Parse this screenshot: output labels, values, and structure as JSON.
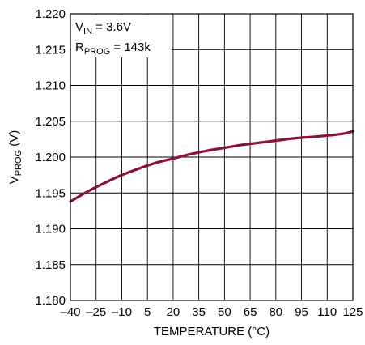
{
  "chart_data": {
    "type": "line",
    "title": "",
    "xlabel": "TEMPERATURE (°C)",
    "ylabel": {
      "main": "V",
      "sub": "PROG",
      "unit": " (V)"
    },
    "xlim": [
      -40,
      125
    ],
    "ylim": [
      1.18,
      1.22
    ],
    "x_ticks": [
      -40,
      -25,
      -10,
      5,
      20,
      35,
      50,
      65,
      80,
      95,
      110,
      125
    ],
    "x_tick_labels": [
      "–40",
      "–25",
      "–10",
      "5",
      "20",
      "35",
      "50",
      "65",
      "80",
      "95",
      "110",
      "125"
    ],
    "y_ticks": [
      1.18,
      1.185,
      1.19,
      1.195,
      1.2,
      1.205,
      1.21,
      1.215,
      1.22
    ],
    "y_tick_labels": [
      "1.180",
      "1.185",
      "1.190",
      "1.195",
      "1.200",
      "1.205",
      "1.210",
      "1.215",
      "1.220"
    ],
    "grid": true,
    "annotations": [
      {
        "main": "V",
        "sub": "IN",
        "rest": " = 3.6V"
      },
      {
        "main": "R",
        "sub": "PROG",
        "rest": " = 143k"
      }
    ],
    "series": [
      {
        "color": "#8b1230",
        "x": [
          -40,
          -30,
          -20,
          -10,
          0,
          10,
          20,
          30,
          40,
          50,
          60,
          70,
          80,
          90,
          100,
          110,
          120,
          125
        ],
        "y": [
          1.1938,
          1.1952,
          1.1964,
          1.1975,
          1.1984,
          1.1992,
          1.1998,
          1.2004,
          1.2009,
          1.2013,
          1.2017,
          1.202,
          1.2023,
          1.2026,
          1.2028,
          1.203,
          1.2033,
          1.2036
        ]
      }
    ]
  }
}
